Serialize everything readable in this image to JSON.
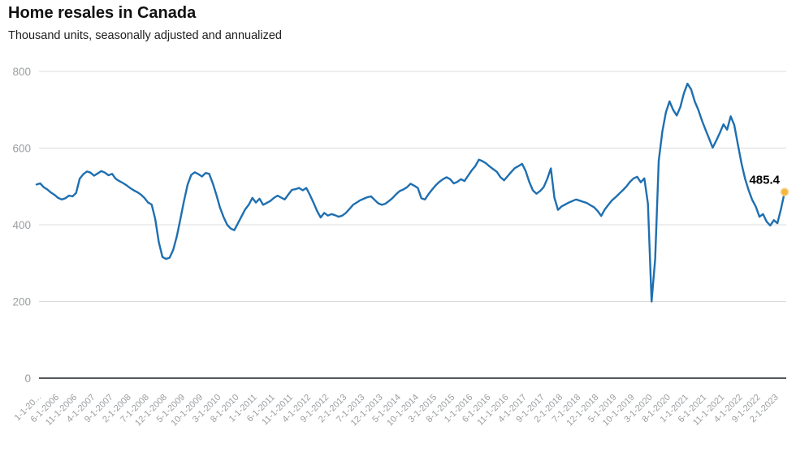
{
  "header": {
    "title": "Home resales in Canada",
    "subtitle": "Thousand units, seasonally adjusted and annualized"
  },
  "chart_data": {
    "type": "line",
    "title": "Home resales in Canada",
    "subtitle": "Thousand units, seasonally adjusted and annualized",
    "unit": "thousand units, seasonally adjusted and annualized",
    "x_frequency": "monthly",
    "x_range": "Jan 2006 to mid 2023, one point per month",
    "x_tick_step_months": 5,
    "x_tick_labels": [
      "1-1-20...",
      "6-1-2006",
      "11-1-2006",
      "4-1-2007",
      "9-1-2007",
      "2-1-2008",
      "7-1-2008",
      "12-1-2008",
      "5-1-2009",
      "10-1-2009",
      "3-1-2010",
      "8-1-2010",
      "1-1-2011",
      "6-1-2011",
      "11-1-2011",
      "4-1-2012",
      "9-1-2012",
      "2-1-2013",
      "7-1-2013",
      "12-1-2013",
      "5-1-2014",
      "10-1-2014",
      "3-1-2015",
      "8-1-2015",
      "1-1-2016",
      "6-1-2016",
      "11-1-2016",
      "4-1-2017",
      "9-1-2017",
      "2-1-2018",
      "7-1-2018",
      "12-1-2018",
      "5-1-2019",
      "10-1-2019",
      "3-1-2020",
      "8-1-2020",
      "1-1-2021",
      "6-1-2021",
      "11-1-2021",
      "4-1-2022",
      "9-1-2022",
      "2-1-2023"
    ],
    "y_ticks": [
      0,
      200,
      400,
      600,
      800
    ],
    "ylim": [
      0,
      800
    ],
    "grid": "horizontal",
    "legend": "none",
    "series": [
      {
        "name": "Home resales",
        "color": "#1e6fb0",
        "values": [
          505,
          508,
          498,
          492,
          484,
          478,
          470,
          466,
          469,
          476,
          474,
          483,
          520,
          532,
          539,
          536,
          528,
          534,
          540,
          536,
          529,
          533,
          520,
          514,
          509,
          503,
          496,
          490,
          485,
          479,
          470,
          458,
          453,
          415,
          355,
          316,
          311,
          314,
          335,
          370,
          415,
          462,
          505,
          530,
          537,
          532,
          526,
          535,
          533,
          508,
          478,
          445,
          420,
          400,
          390,
          386,
          404,
          422,
          440,
          452,
          470,
          458,
          468,
          452,
          457,
          462,
          470,
          476,
          471,
          466,
          479,
          491,
          493,
          496,
          490,
          496,
          478,
          458,
          436,
          419,
          431,
          424,
          428,
          425,
          421,
          424,
          431,
          441,
          452,
          458,
          464,
          468,
          472,
          474,
          465,
          456,
          452,
          455,
          462,
          470,
          480,
          488,
          492,
          498,
          507,
          502,
          496,
          469,
          466,
          480,
          492,
          503,
          512,
          519,
          524,
          519,
          508,
          512,
          519,
          514,
          528,
          542,
          553,
          570,
          566,
          560,
          552,
          545,
          538,
          524,
          516,
          527,
          538,
          548,
          553,
          559,
          540,
          512,
          490,
          481,
          488,
          498,
          520,
          547,
          470,
          439,
          448,
          453,
          458,
          462,
          466,
          463,
          460,
          457,
          451,
          446,
          436,
          423,
          440,
          452,
          464,
          472,
          481,
          490,
          500,
          512,
          521,
          525,
          511,
          521,
          455,
          200,
          310,
          567,
          644,
          694,
          722,
          700,
          685,
          707,
          743,
          768,
          753,
          722,
          700,
          672,
          648,
          625,
          601,
          620,
          640,
          662,
          648,
          683,
          660,
          610,
          560,
          520,
          490,
          465,
          447,
          421,
          428,
          408,
          398,
          412,
          404,
          442,
          485.4
        ]
      }
    ],
    "last_point": {
      "label": "485.4",
      "value": 485.4,
      "marker_color": "#f3b73f",
      "marker_ring_color": "#f8d38c"
    },
    "colors": {
      "line": "#1e6fb0",
      "marker": "#f3b73f",
      "grid": "#dcdcdc",
      "axis": "#55595c",
      "tick_label": "#9a9ea1",
      "title": "#111111",
      "annotation": "#000000",
      "background": "#ffffff"
    }
  }
}
